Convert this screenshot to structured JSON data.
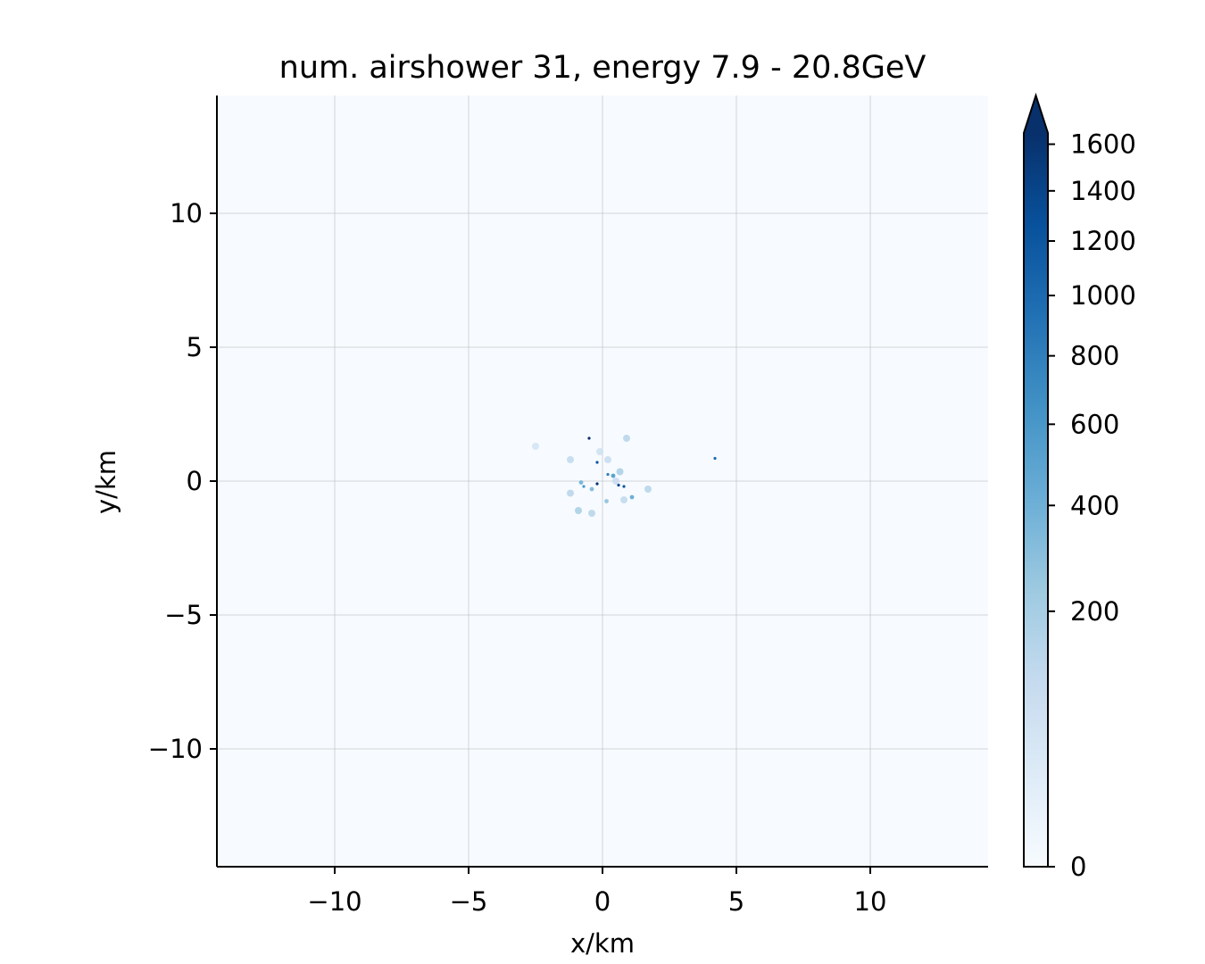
{
  "chart_data": {
    "type": "heatmap",
    "title": "num. airshower 31, energy 7.9 - 20.8GeV",
    "xlabel": "x/km",
    "ylabel": "y/km",
    "xlim": [
      -14.4,
      14.4
    ],
    "ylim": [
      -14.4,
      14.4
    ],
    "xticks": [
      -10,
      -5,
      0,
      5,
      10
    ],
    "yticks": [
      -10,
      -5,
      0,
      5,
      10
    ],
    "xtick_labels": [
      "−10",
      "−5",
      "0",
      "5",
      "10"
    ],
    "ytick_labels": [
      "−10",
      "−5",
      "0",
      "5",
      "10"
    ],
    "grid": true,
    "colormap": "Blues",
    "colorbar": {
      "min": 0,
      "max": 1650,
      "extend": "max",
      "scale": "sqrt",
      "ticks": [
        0,
        200,
        400,
        600,
        800,
        1000,
        1200,
        1400,
        1600
      ],
      "tick_labels": [
        "0",
        "200",
        "400",
        "600",
        "800",
        "1000",
        "1200",
        "1400",
        "1600"
      ]
    },
    "points": [
      {
        "x": 4.2,
        "y": 0.85,
        "value": 1000
      },
      {
        "x": 0.2,
        "y": 0.25,
        "value": 800
      },
      {
        "x": -0.2,
        "y": -0.1,
        "value": 1650
      },
      {
        "x": 0.6,
        "y": -0.15,
        "value": 1400
      },
      {
        "x": -0.5,
        "y": 1.6,
        "value": 1650
      },
      {
        "x": -0.2,
        "y": 0.7,
        "value": 1200
      },
      {
        "x": -0.7,
        "y": -0.2,
        "value": 600
      },
      {
        "x": 0.8,
        "y": -0.2,
        "value": 1200
      },
      {
        "x": 0.4,
        "y": 0.2,
        "value": 500
      },
      {
        "x": -0.4,
        "y": -0.3,
        "value": 300
      },
      {
        "x": -0.9,
        "y": -1.1,
        "value": 200
      },
      {
        "x": -0.4,
        "y": -1.2,
        "value": 150
      },
      {
        "x": 1.7,
        "y": -0.3,
        "value": 150
      },
      {
        "x": 0.8,
        "y": -0.7,
        "value": 120
      },
      {
        "x": 0.2,
        "y": 0.8,
        "value": 100
      },
      {
        "x": -1.2,
        "y": 0.8,
        "value": 120
      },
      {
        "x": -1.2,
        "y": -0.45,
        "value": 150
      },
      {
        "x": 1.1,
        "y": -0.6,
        "value": 400
      },
      {
        "x": 0.5,
        "y": 0.0,
        "value": 100
      },
      {
        "x": -0.1,
        "y": 1.1,
        "value": 80
      },
      {
        "x": 0.9,
        "y": 1.6,
        "value": 150
      },
      {
        "x": -2.5,
        "y": 1.3,
        "value": 60
      },
      {
        "x": -0.8,
        "y": -0.05,
        "value": 350
      },
      {
        "x": 0.15,
        "y": -0.75,
        "value": 250
      },
      {
        "x": 0.65,
        "y": 0.35,
        "value": 200
      }
    ]
  }
}
